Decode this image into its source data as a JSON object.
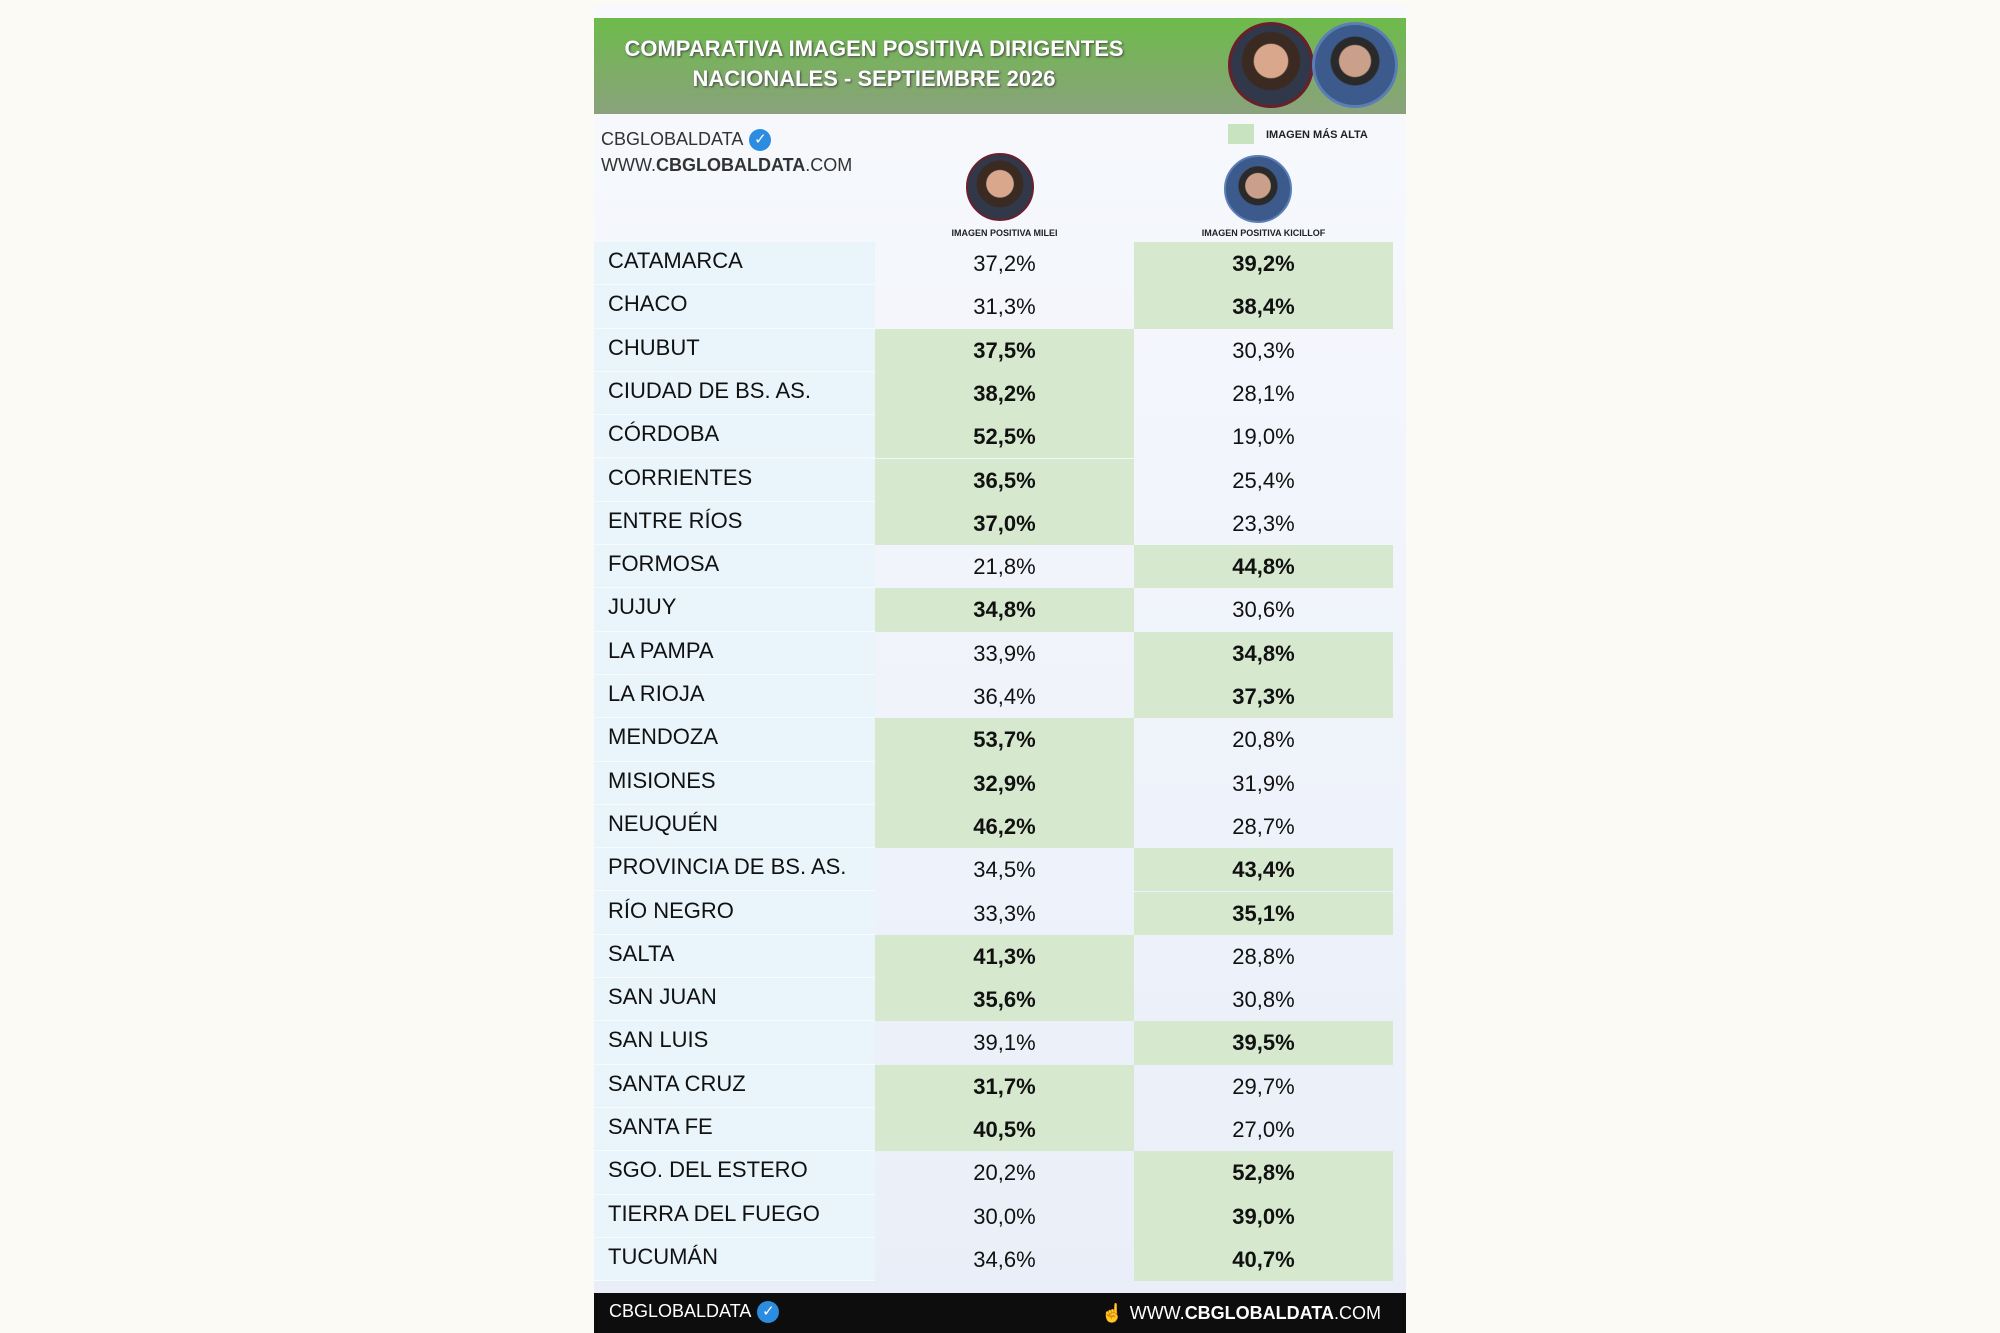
{
  "header": {
    "title_lines": [
      "COMPARATIVA IMAGEN POSITIVA DIRIGENTES",
      "NACIONALES - SEPTIEMBRE 2026"
    ]
  },
  "brand": {
    "name": "CBGLOBALDATA",
    "website": [
      "WWW.",
      "CBGLOBALDATA",
      ".COM"
    ]
  },
  "legend": {
    "label": "IMAGEN MÁS ALTA"
  },
  "columns": [
    "IMAGEN POSITIVA MILEI",
    "IMAGEN POSITIVA KICILLOF"
  ],
  "table": {
    "rows": [
      [
        "CATAMARCA",
        "37,2%",
        "39,2%"
      ],
      [
        "CHACO",
        "31,3%",
        "38,4%"
      ],
      [
        "CHUBUT",
        "37,5%",
        "30,3%"
      ],
      [
        "CIUDAD DE BS. AS.",
        "38,2%",
        "28,1%"
      ],
      [
        "CÓRDOBA",
        "52,5%",
        "19,0%"
      ],
      [
        "CORRIENTES",
        "36,5%",
        "25,4%"
      ],
      [
        "ENTRE RÍOS",
        "37,0%",
        "23,3%"
      ],
      [
        "FORMOSA",
        "21,8%",
        "44,8%"
      ],
      [
        "JUJUY",
        "34,8%",
        "30,6%"
      ],
      [
        "LA PAMPA",
        "33,9%",
        "34,8%"
      ],
      [
        "LA RIOJA",
        "36,4%",
        "37,3%"
      ],
      [
        "MENDOZA",
        "53,7%",
        "20,8%"
      ],
      [
        "MISIONES",
        "32,9%",
        "31,9%"
      ],
      [
        "NEUQUÉN",
        "46,2%",
        "28,7%"
      ],
      [
        "PROVINCIA DE BS. AS.",
        "34,5%",
        "43,4%"
      ],
      [
        "RÍO NEGRO",
        "33,3%",
        "35,1%"
      ],
      [
        "SALTA",
        "41,3%",
        "28,8%"
      ],
      [
        "SAN JUAN",
        "35,6%",
        "30,8%"
      ],
      [
        "SAN LUIS",
        "39,1%",
        "39,5%"
      ],
      [
        "SANTA CRUZ",
        "31,7%",
        "29,7%"
      ],
      [
        "SANTA FE",
        "40,5%",
        "27,0%"
      ],
      [
        "SGO. DEL ESTERO",
        "20,2%",
        "52,8%"
      ],
      [
        "TIERRA DEL FUEGO",
        "30,0%",
        "39,0%"
      ],
      [
        "TUCUMÁN",
        "34,6%",
        "40,7%"
      ]
    ]
  },
  "footer": {
    "brand": "CBGLOBALDATA",
    "website": [
      "WWW.",
      "CBGLOBALDATA",
      ".COM"
    ]
  }
}
